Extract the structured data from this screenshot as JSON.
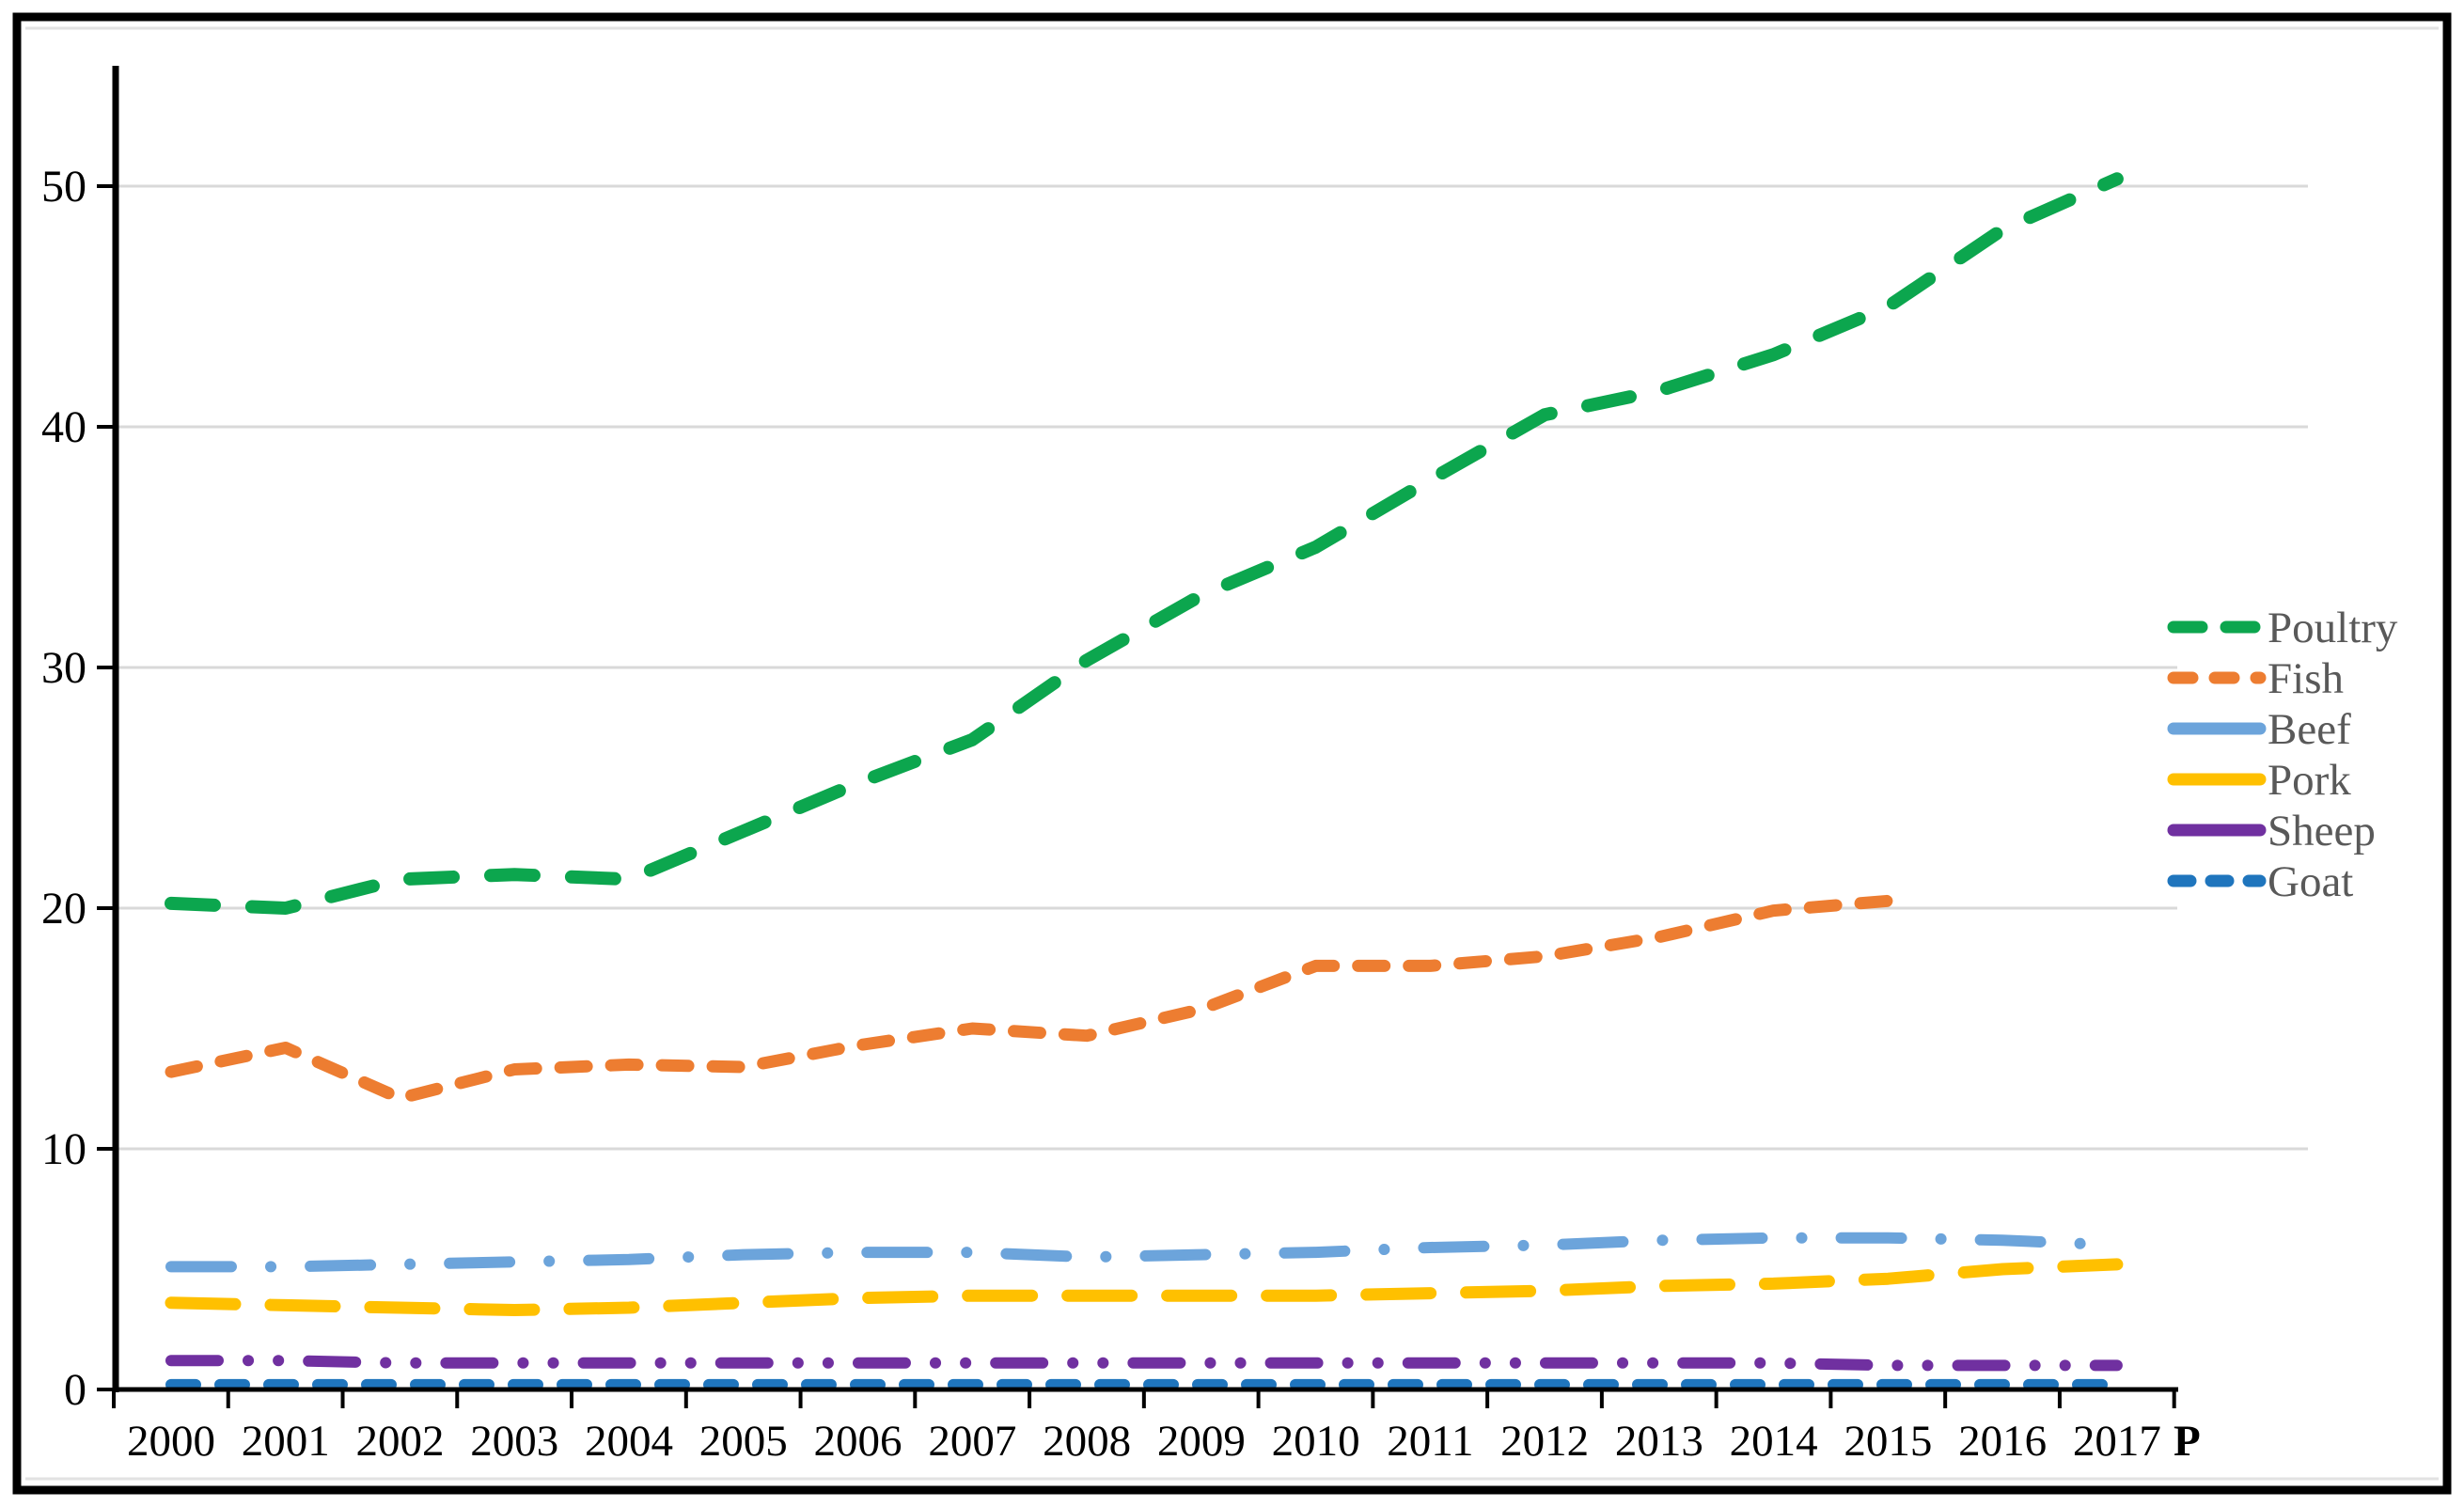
{
  "figure": {
    "background": "#FFFFFF",
    "border_color": "#000000",
    "inner_frame_color": "#E2E2E2",
    "gridline_color": "#D9D9D9",
    "axis_color": "#000000",
    "tick_label_color": "#000000",
    "legend_text_color": "#595959"
  },
  "chart_data": {
    "type": "line",
    "title": "",
    "xlabel": "",
    "ylabel": "",
    "x": [
      2000,
      2001,
      2002,
      2003,
      2004,
      2005,
      2006,
      2007,
      2008,
      2009,
      2010,
      2011,
      2012,
      2013,
      2014,
      2015,
      2016,
      2017
    ],
    "x_tick_labels": [
      "2000",
      "2001",
      "2002",
      "2003",
      "2004",
      "2005",
      "2006",
      "2007",
      "2008",
      "2009",
      "2010",
      "2011",
      "2012",
      "2013",
      "2014",
      "2015",
      "2016",
      "2017"
    ],
    "x_last_suffix": "P",
    "ylim": [
      0,
      55
    ],
    "yticks": [
      0,
      10,
      20,
      30,
      40,
      50
    ],
    "ytick_labels": [
      "0",
      "10",
      "20",
      "30",
      "40",
      "50"
    ],
    "grid": true,
    "legend_position": "right",
    "series": [
      {
        "name": "Poultry",
        "color": "#0CA64E",
        "style": "dash",
        "values": [
          20.2,
          20.0,
          21.2,
          21.4,
          21.2,
          23.2,
          25.2,
          27.0,
          30.3,
          33.0,
          35.0,
          37.8,
          40.5,
          41.5,
          43.0,
          45.0,
          48.2,
          50.3
        ]
      },
      {
        "name": "Fish",
        "color": "#ED7D31",
        "style": "dash-short",
        "values": [
          13.2,
          14.2,
          12.1,
          13.3,
          13.5,
          13.4,
          14.3,
          15.0,
          14.7,
          15.8,
          17.6,
          17.6,
          18.0,
          18.8,
          19.9,
          20.3,
          null,
          null
        ]
      },
      {
        "name": "Beef",
        "color": "#6CA4DB",
        "style": "dash-dot",
        "values": [
          5.1,
          5.1,
          5.2,
          5.3,
          5.4,
          5.6,
          5.7,
          5.7,
          5.5,
          5.6,
          5.7,
          5.9,
          6.0,
          6.2,
          6.3,
          6.3,
          6.2,
          6.0
        ]
      },
      {
        "name": "Pork",
        "color": "#FFC000",
        "style": "long-dash",
        "values": [
          3.6,
          3.5,
          3.4,
          3.3,
          3.4,
          3.6,
          3.8,
          3.9,
          3.9,
          3.9,
          3.9,
          4.0,
          4.1,
          4.3,
          4.4,
          4.6,
          5.0,
          5.2
        ]
      },
      {
        "name": "Sheep",
        "color": "#7030A0",
        "style": "dash-dot-dot",
        "values": [
          1.2,
          1.2,
          1.1,
          1.1,
          1.1,
          1.1,
          1.1,
          1.1,
          1.1,
          1.1,
          1.1,
          1.1,
          1.1,
          1.1,
          1.1,
          1.0,
          1.0,
          1.0
        ]
      },
      {
        "name": "Goat",
        "color": "#1F75BD",
        "style": "dash-tiny",
        "values": [
          0.2,
          0.2,
          0.2,
          0.2,
          0.2,
          0.2,
          0.2,
          0.2,
          0.2,
          0.2,
          0.2,
          0.2,
          0.2,
          0.2,
          0.2,
          0.2,
          0.2,
          0.2
        ]
      }
    ]
  }
}
